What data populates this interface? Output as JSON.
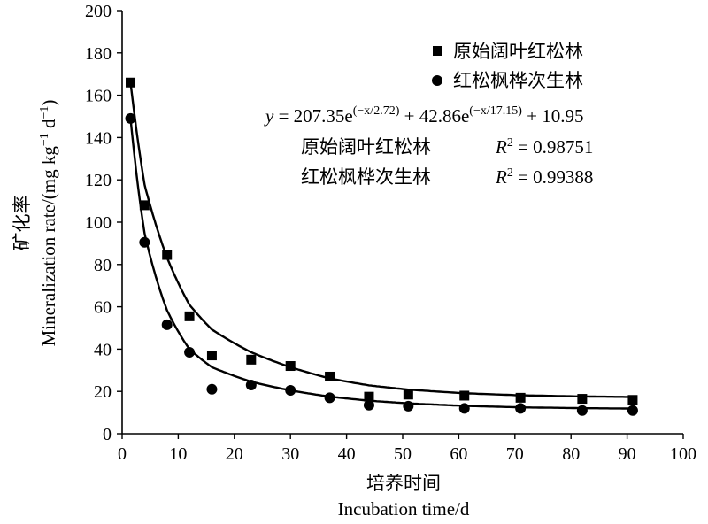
{
  "chart_data": {
    "type": "scatter",
    "x_axis": {
      "title_cn": "培养时间",
      "title_en": "Incubation time/d",
      "min": 0,
      "max": 100,
      "ticks": [
        0,
        10,
        20,
        30,
        40,
        50,
        60,
        70,
        80,
        90,
        100
      ]
    },
    "y_axis": {
      "title_cn": "矿化率",
      "title_en": "Mineralization rate/(mg kg",
      "title_en_sup1": "−1",
      "title_en_mid": " d",
      "title_en_sup2": "−1",
      "title_en_end": ")",
      "min": 0,
      "max": 200,
      "ticks": [
        0,
        20,
        40,
        60,
        80,
        100,
        120,
        140,
        160,
        180,
        200
      ]
    },
    "grid": false,
    "legend_position": "top-right",
    "equation": {
      "y": "y",
      "eq1": " = 207.35e",
      "exp1": "(−x/2.72)",
      "eq2": " + 42.86e",
      "exp2": "(−x/17.15)",
      "eq3": " + 10.95"
    },
    "r2": [
      {
        "name": "原始阔叶红松林",
        "R": "R",
        "sup": "2",
        "value": " = 0.98751"
      },
      {
        "name": "红松枫桦次生林",
        "R": "R",
        "sup": "2",
        "value": " = 0.99388"
      }
    ],
    "series": [
      {
        "name": "原始阔叶红松林",
        "marker": "square",
        "x": [
          1.5,
          4,
          8,
          12,
          16,
          23,
          30,
          37,
          44,
          51,
          61,
          71,
          82,
          91
        ],
        "y": [
          166,
          108,
          84.5,
          55.5,
          37,
          35,
          32,
          27,
          17.5,
          18.5,
          18,
          17,
          16.5,
          16
        ]
      },
      {
        "name": "红松枫桦次生林",
        "marker": "circle",
        "x": [
          1.5,
          4,
          8,
          12,
          16,
          23,
          30,
          37,
          44,
          51,
          61,
          71,
          82,
          91
        ],
        "y": [
          149,
          90.5,
          51.5,
          38.5,
          21,
          23,
          20.5,
          17,
          13.5,
          13,
          12,
          12,
          11,
          11
        ]
      }
    ]
  }
}
